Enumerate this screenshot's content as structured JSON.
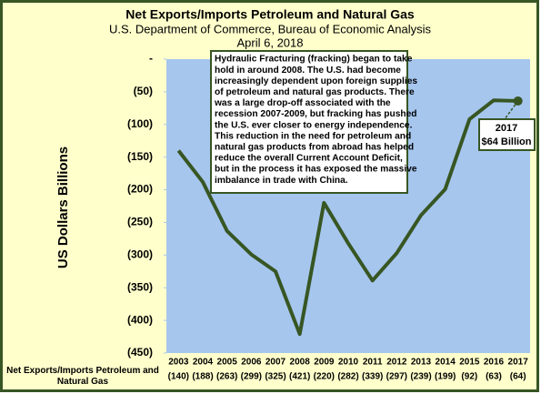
{
  "chart_data": {
    "type": "line",
    "title": "Net Exports/Imports Petroleum and Natural Gas",
    "subtitle": "U.S. Department of Commerce, Bureau of Economic Analysis",
    "date": "April 6, 2018",
    "y_label": "US Dollars Billions",
    "categories": [
      "2003",
      "2004",
      "2005",
      "2006",
      "2007",
      "2008",
      "2009",
      "2010",
      "2011",
      "2012",
      "2013",
      "2014",
      "2015",
      "2016",
      "2017"
    ],
    "series": [
      {
        "name": "Net Exports/Imports Petroleum and Natural Gas",
        "color": "#375623",
        "values": [
          -140,
          -188,
          -263,
          -299,
          -325,
          -421,
          -220,
          -282,
          -339,
          -297,
          -239,
          -199,
          -92,
          -63,
          -64
        ],
        "value_labels": [
          "(140)",
          "(188)",
          "(263)",
          "(299)",
          "(325)",
          "(421)",
          "(220)",
          "(282)",
          "(339)",
          "(297)",
          "(239)",
          "(199)",
          "(92)",
          "(63)",
          "(64)"
        ]
      }
    ],
    "ylim": [
      -450,
      0
    ],
    "yticks": [
      {
        "value": 0,
        "label": "-"
      },
      {
        "value": -50,
        "label": "(50)"
      },
      {
        "value": -100,
        "label": "(100)"
      },
      {
        "value": -150,
        "label": "(150)"
      },
      {
        "value": -200,
        "label": "(200)"
      },
      {
        "value": -250,
        "label": "(250)"
      },
      {
        "value": -300,
        "label": "(300)"
      },
      {
        "value": -350,
        "label": "(350)"
      },
      {
        "value": -400,
        "label": "(400)"
      },
      {
        "value": -450,
        "label": "(450)"
      }
    ],
    "grid": false,
    "annotation": [
      "Hydraulic Fracturing (fracking) began to take",
      "hold in around 2008.  The U.S. had become",
      "increasingly dependent upon foreign supplies",
      "of petroleum and natural gas products.  There",
      "was a large drop-off associated with the",
      "recession 2007-2009, but fracking has pushed",
      "the U.S. ever closer to energy independence.",
      "This reduction in the need for petroleum and",
      "natural gas products from abroad has helped",
      "reduce the overall Current Account Deficit,",
      "but in the process it has exposed the massive",
      "imbalance in trade with China."
    ],
    "callout": [
      "2017",
      "$64 Billion"
    ]
  }
}
